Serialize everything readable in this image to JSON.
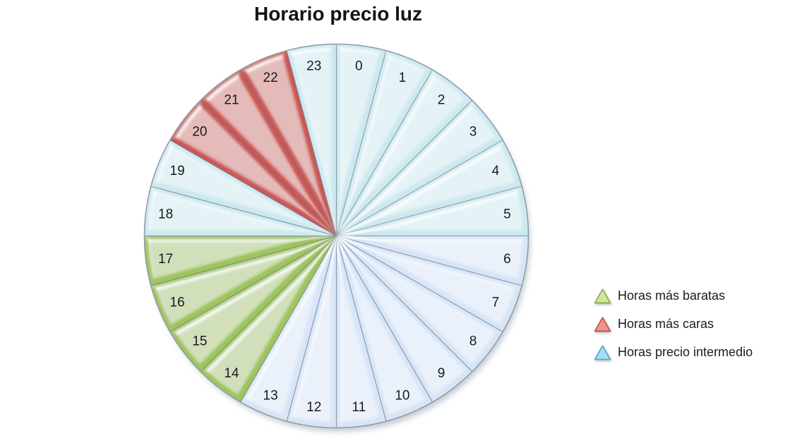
{
  "chart_data": {
    "type": "pie",
    "title": "Horario precio luz",
    "start_angle_deg": 0,
    "direction": "clockwise",
    "legend_position": "right",
    "background": "#ffffff",
    "slices": [
      {
        "label": "0",
        "value": 1,
        "group": "intermedio",
        "fill": "#CDE9F0"
      },
      {
        "label": "1",
        "value": 1,
        "group": "intermedio",
        "fill": "#CDE9F0"
      },
      {
        "label": "2",
        "value": 1,
        "group": "intermedio",
        "fill": "#CDE9F0"
      },
      {
        "label": "3",
        "value": 1,
        "group": "intermedio",
        "fill": "#CDE9F0"
      },
      {
        "label": "4",
        "value": 1,
        "group": "intermedio",
        "fill": "#CDE9F0"
      },
      {
        "label": "5",
        "value": 1,
        "group": "intermedio",
        "fill": "#CDE9F0"
      },
      {
        "label": "6",
        "value": 1,
        "group": "intermedio",
        "fill": "#D8E5F7"
      },
      {
        "label": "7",
        "value": 1,
        "group": "intermedio",
        "fill": "#D8E5F7"
      },
      {
        "label": "8",
        "value": 1,
        "group": "intermedio",
        "fill": "#D8E5F7"
      },
      {
        "label": "9",
        "value": 1,
        "group": "intermedio",
        "fill": "#D8E5F7"
      },
      {
        "label": "10",
        "value": 1,
        "group": "intermedio",
        "fill": "#D8E5F7"
      },
      {
        "label": "11",
        "value": 1,
        "group": "intermedio",
        "fill": "#D8E5F7"
      },
      {
        "label": "12",
        "value": 1,
        "group": "intermedio",
        "fill": "#D8E5F7"
      },
      {
        "label": "13",
        "value": 1,
        "group": "intermedio",
        "fill": "#D8E5F7"
      },
      {
        "label": "14",
        "value": 1,
        "group": "baratas",
        "fill": "#A0C45C"
      },
      {
        "label": "15",
        "value": 1,
        "group": "baratas",
        "fill": "#A0C45C"
      },
      {
        "label": "16",
        "value": 1,
        "group": "baratas",
        "fill": "#A0C45C"
      },
      {
        "label": "17",
        "value": 1,
        "group": "baratas",
        "fill": "#A0C45C"
      },
      {
        "label": "18",
        "value": 1,
        "group": "intermedio",
        "fill": "#CDE9F0"
      },
      {
        "label": "19",
        "value": 1,
        "group": "intermedio",
        "fill": "#CDE9F0"
      },
      {
        "label": "20",
        "value": 1,
        "group": "caras",
        "fill": "#CC5954"
      },
      {
        "label": "21",
        "value": 1,
        "group": "caras",
        "fill": "#CC5954"
      },
      {
        "label": "22",
        "value": 1,
        "group": "caras",
        "fill": "#CC5954"
      },
      {
        "label": "23",
        "value": 1,
        "group": "intermedio",
        "fill": "#CDE9F0"
      }
    ],
    "legend": [
      {
        "label": "Horas más baratas",
        "marker": "triangle",
        "fill": "#CFE69E",
        "stroke": "#8AAA50"
      },
      {
        "label": "Horas más caras",
        "marker": "triangle",
        "fill": "#EE948F",
        "stroke": "#C34F49"
      },
      {
        "label": "Horas precio intermedio",
        "marker": "triangle",
        "fill": "#A4DFF4",
        "stroke": "#59A5C8"
      }
    ]
  }
}
